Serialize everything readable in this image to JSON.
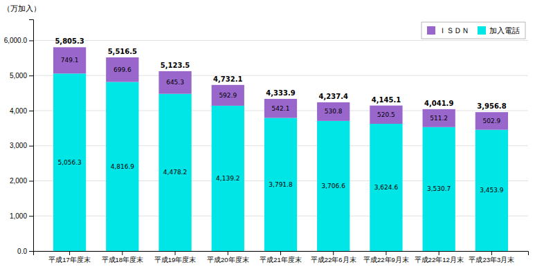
{
  "chart_data": {
    "type": "bar",
    "stacked": true,
    "categories": [
      "平成17年度末",
      "平成18年度末",
      "平成19年度末",
      "平成20年度末",
      "平成21年度末",
      "平成22年6月末",
      "平成22年9月末",
      "平成22年12月末",
      "平成23年3月末"
    ],
    "series": [
      {
        "name": "加入電話",
        "color": "#00E5E5",
        "values": [
          5056.3,
          4816.9,
          4478.2,
          4139.2,
          3791.8,
          3706.6,
          3624.6,
          3530.7,
          3453.9
        ],
        "value_labels": [
          "5,056.3",
          "4,816.9",
          "4,478.2",
          "4,139.2",
          "3,791.8",
          "3,706.6",
          "3,624.6",
          "3,530.7",
          "3,453.9"
        ]
      },
      {
        "name": "ＩＳＤＮ",
        "color": "#9966CC",
        "values": [
          749.1,
          699.6,
          645.3,
          592.9,
          542.1,
          530.8,
          520.5,
          511.2,
          502.9
        ]
      }
    ],
    "totals": [
      5805.3,
      5516.5,
      5123.5,
      4732.1,
      4333.9,
      4237.4,
      4145.1,
      4041.9,
      3956.8
    ],
    "totals_labels": [
      "5,805.3",
      "5,516.5",
      "5,123.5",
      "4,732.1",
      "4,333.9",
      "4,237.4",
      "4,145.1",
      "4,041.9",
      "3,956.8"
    ],
    "ylabel": "（万加入）",
    "ylim": [
      0,
      6600
    ],
    "yticks": [
      {
        "value": 0,
        "label": "0.0"
      },
      {
        "value": 1000,
        "label": "1,000"
      },
      {
        "value": 2000,
        "label": "2,000"
      },
      {
        "value": 3000,
        "label": "3,000"
      },
      {
        "value": 4000,
        "label": "4,000"
      },
      {
        "value": 5000,
        "label": "5,000"
      },
      {
        "value": 6000,
        "label": "6,000.0"
      }
    ],
    "grid": true,
    "legend": "upper right",
    "data_labels": true
  }
}
